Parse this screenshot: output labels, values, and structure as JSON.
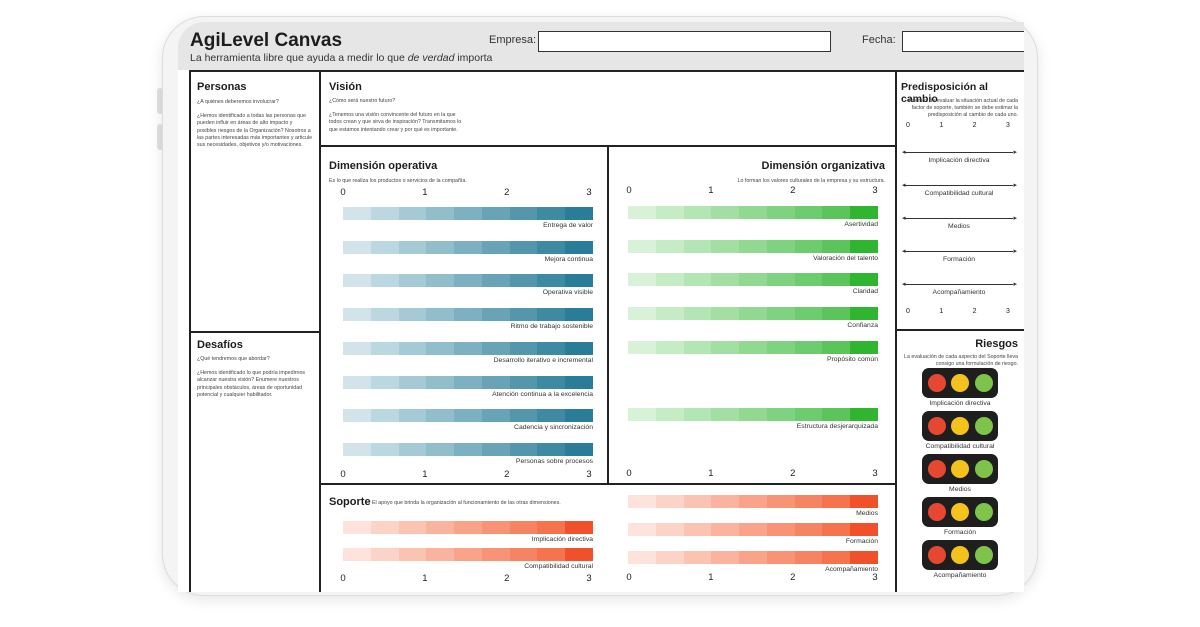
{
  "header": {
    "title": "AgiLevel Canvas",
    "subtitle_pre": "La herramienta libre que ayuda a medir lo que ",
    "subtitle_em": "de verdad",
    "subtitle_post": " importa",
    "empresa_label": "Empresa:",
    "fecha_label": "Fecha:"
  },
  "personas": {
    "title": "Personas",
    "text": "¿A quiénes deberemos involucrar?\n\n¿Hemos identificado a todas las personas que pueden influir en áreas de alto impacto y posibles riesgos de la Organización? Nosotros a las partes interesadas más importantes y articule sus necesidades, objetivos y/o motivaciones."
  },
  "desafios": {
    "title": "Desafíos",
    "text": "¿Qué tendremos que abordar?\n\n¿Hemos identificado lo que podría impedirnos alcanzar nuestra visión? Enumere nuestros principales obstáculos, áreas de oportunidad potencial y cualquier habilitador."
  },
  "vision": {
    "title": "Visión",
    "text": "¿Cómo será nuestro futuro?\n\n¿Tenemos una visión convincente del futuro en la que todos crean y que sirva de inspiración? Transmitamos lo que estamos intentando crear y por qué es importante."
  },
  "scale": [
    "0",
    "1",
    "2",
    "3"
  ],
  "operativa": {
    "title": "Dimensión operativa",
    "desc": "Es lo que realiza los productos o servicios de la compañía.",
    "items": [
      "Entrega de valor",
      "Mejora continua",
      "Operativa visible",
      "Ritmo de trabajo sostenible",
      "Desarrollo iterativo e incremental",
      "Atención continua a la excelencia",
      "Cadencia y sincronización",
      "Personas sobre procesos"
    ]
  },
  "organizativa": {
    "title": "Dimensión organizativa",
    "desc": "Lo forman los valores culturales de la empresa y su estructura.",
    "items": [
      "Asertividad",
      "Valoración del talento",
      "Claridad",
      "Confianza",
      "Propósito común",
      "Estructura desjerarquizada"
    ]
  },
  "soporte": {
    "title": "Soporte",
    "desc": "El apoyo que brinda la organización al funcionamiento de las otras dimensiones.",
    "items": [
      "Implicación directiva",
      "Compatibilidad cultural",
      "Medios",
      "Formación",
      "Acompañamiento"
    ]
  },
  "predisposicion": {
    "title": "Predisposición al cambio",
    "desc": "Además de evaluar la situación actual de cada factor de soporte, también se debe estimar la predisposición al cambio de cada uno.",
    "items": [
      "Implicación directiva",
      "Compatibilidad cultural",
      "Medios",
      "Formación",
      "Acompañamiento"
    ]
  },
  "riesgos": {
    "title": "Riesgos",
    "desc": "La evaluación de cada aspecto del Soporte lleva consigo una formulación de riesgo.",
    "items": [
      "Implicación directiva",
      "Compatibilidad cultural",
      "Medios",
      "Formación",
      "Acompañamiento"
    ]
  },
  "colors": {
    "operativa": [
      "#d2e4ea",
      "#bbd7e0",
      "#a6cad5",
      "#92bdcb",
      "#7db0c1",
      "#69a3b7",
      "#5497ad",
      "#3f8aa3",
      "#2a7d99"
    ],
    "organizativa": [
      "#d7f2d7",
      "#c6ecc6",
      "#b4e5b4",
      "#a3dfa3",
      "#91d991",
      "#7fd27f",
      "#6dcc6d",
      "#5bc55b",
      "#2fb52f"
    ],
    "soporte": [
      "#fde3dc",
      "#fcd3c7",
      "#fbc3b2",
      "#fab39e",
      "#f9a38a",
      "#f89376",
      "#f68362",
      "#f5734d",
      "#f0502a"
    ]
  }
}
